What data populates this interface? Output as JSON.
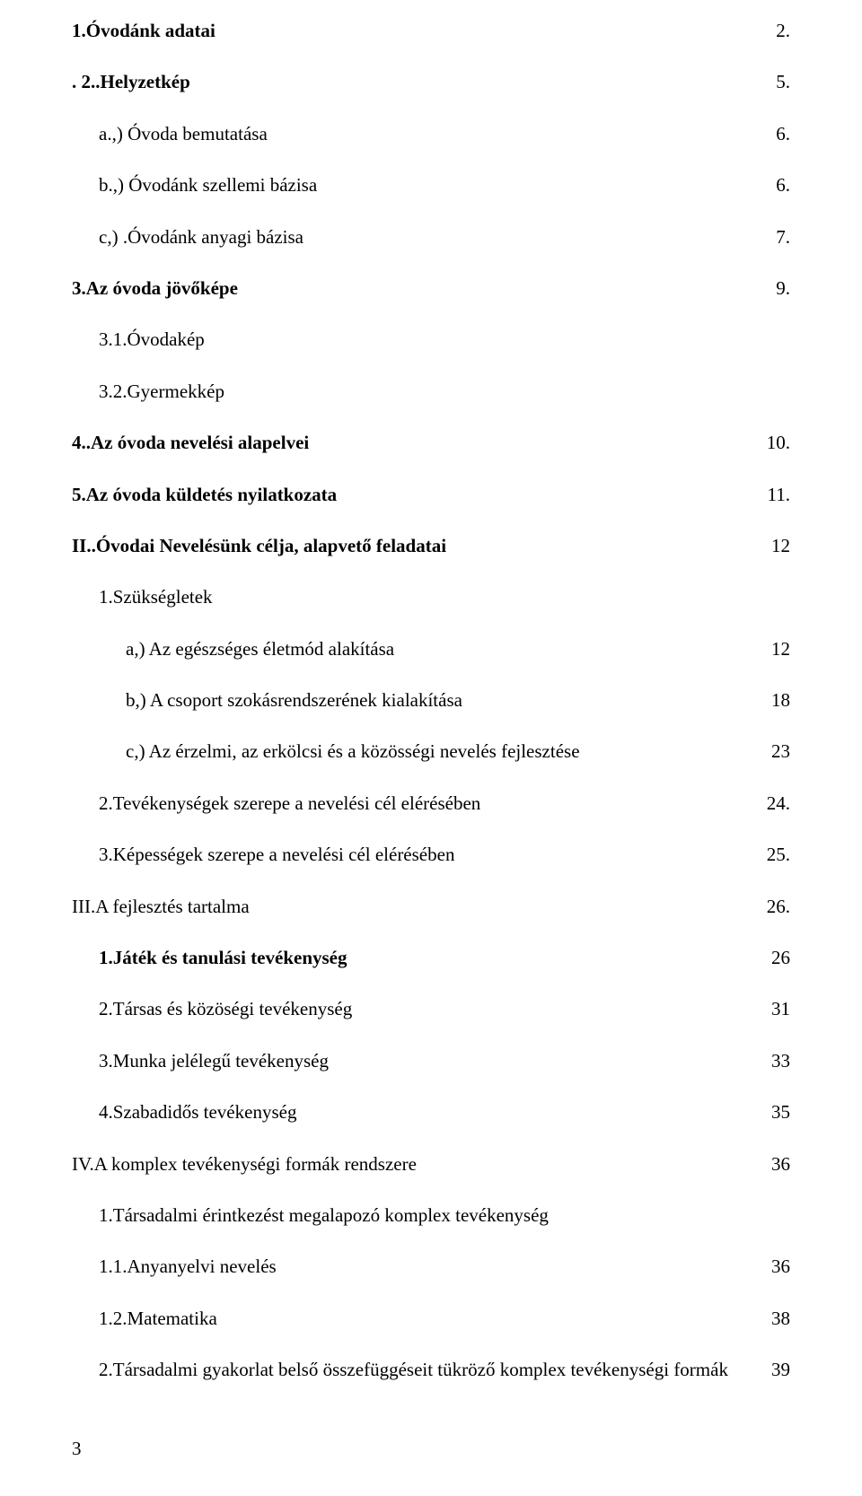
{
  "toc": [
    {
      "label": "1.Óvodánk adatai",
      "page": "2.",
      "bold": true,
      "indent": 0
    },
    {
      "label": ". 2..Helyzetkép",
      "page": "5.",
      "bold": true,
      "indent": 0
    },
    {
      "label": "a.,) Óvoda bemutatása",
      "page": "6.",
      "bold": false,
      "indent": 1
    },
    {
      "label": "b.,) Óvodánk szellemi bázisa",
      "page": "6.",
      "bold": false,
      "indent": 1
    },
    {
      "label": "c,) .Óvodánk anyagi bázisa",
      "page": "7.",
      "bold": false,
      "indent": 1
    },
    {
      "label": "3.Az óvoda jövőképe",
      "page": "9.",
      "bold": true,
      "indent": 0
    },
    {
      "label": "3.1.Óvodakép",
      "page": "",
      "bold": false,
      "indent": 1
    },
    {
      "label": "3.2.Gyermekkép",
      "page": "",
      "bold": false,
      "indent": 1
    },
    {
      "label": "4..Az óvoda nevelési alapelvei",
      "page": "10.",
      "bold": true,
      "indent": 0
    },
    {
      "label": "5.Az óvoda küldetés nyilatkozata",
      "page": "11.",
      "bold": true,
      "indent": 0
    },
    {
      "label": "II..Óvodai Nevelésünk célja, alapvető feladatai",
      "page": "12",
      "bold": true,
      "indent": 0
    },
    {
      "label": "1.Szükségletek",
      "page": "",
      "bold": false,
      "indent": 1
    },
    {
      "label": "a,) Az egészséges életmód alakítása",
      "page": "12",
      "bold": false,
      "indent": 2
    },
    {
      "label": "b,) A csoport szokásrendszerének kialakítása",
      "page": "18",
      "bold": false,
      "indent": 2
    },
    {
      "label": "c,) Az érzelmi, az erkölcsi és a közösségi nevelés fejlesztése",
      "page": "23",
      "bold": false,
      "indent": 2
    },
    {
      "label": "2.Tevékenységek szerepe a nevelési cél elérésében",
      "page": "24.",
      "bold": false,
      "indent": 1
    },
    {
      "label": "3.Képességek szerepe a nevelési cél elérésében",
      "page": "25.",
      "bold": false,
      "indent": 1
    },
    {
      "label": "III.A fejlesztés tartalma",
      "page": "26.",
      "bold": false,
      "indent": 0
    },
    {
      "label": "1.Játék és tanulási tevékenység",
      "page": "26",
      "bold": true,
      "indent": 1
    },
    {
      "label": "2.Társas és közöségi tevékenység",
      "page": "31",
      "bold": false,
      "indent": 1
    },
    {
      "label": "3.Munka jelélegű tevékenység",
      "page": "33",
      "bold": false,
      "indent": 1
    },
    {
      "label": "4.Szabadidős tevékenység",
      "page": "35",
      "bold": false,
      "indent": 1
    },
    {
      "label": "IV.A  komplex tevékenységi formák rendszere",
      "page": "36",
      "bold": false,
      "indent": 0
    },
    {
      "label": "1.Társadalmi érintkezést megalapozó komplex tevékenység",
      "page": "",
      "bold": false,
      "indent": 1
    },
    {
      "label": "1.1.Anyanyelvi nevelés",
      "page": "36",
      "bold": false,
      "indent": 1
    },
    {
      "label": "1.2.Matematika",
      "page": "38",
      "bold": false,
      "indent": 1
    },
    {
      "label": "2.Társadalmi gyakorlat belső összefüggéseit tükröző komplex tevékenységi formák",
      "page": "39",
      "bold": false,
      "indent": 1
    }
  ],
  "footer_page": "3"
}
